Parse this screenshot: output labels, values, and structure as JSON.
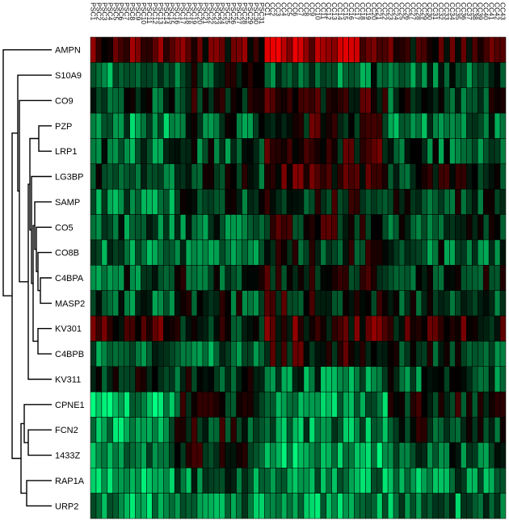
{
  "chart_data": {
    "type": "heatmap",
    "title": "",
    "xlabel": "",
    "ylabel": "",
    "color_scale": {
      "low": "#00ff80",
      "mid": "#000000",
      "high": "#ff0000"
    },
    "row_labels": [
      "AMPN",
      "S10A9",
      "CO9",
      "PZP",
      "LRP1",
      "LG3BP",
      "SAMP",
      "CO5",
      "CO8B",
      "C4BPA",
      "MASP2",
      "KV301",
      "C4BPB",
      "KV311",
      "CPNE1",
      "FCN2",
      "1433Z",
      "RAP1A",
      "URP2"
    ],
    "col_labels": [
      "PSC1",
      "PSC2",
      "PSC3",
      "PSC4",
      "PSC5",
      "PSC6",
      "PSC7",
      "PSC8",
      "PSC9",
      "PSC10",
      "PSC11",
      "PSC12",
      "PSC13",
      "PSC14",
      "PSC15",
      "PSC16",
      "PSC17",
      "PSC18",
      "PSC19",
      "PSC20",
      "PSC21",
      "PSC22",
      "PSC23",
      "PSC24",
      "PSC25",
      "PSC26",
      "PSC27",
      "PSC28",
      "PSC29",
      "PSC30",
      "PSC31",
      "CC1",
      "CC2",
      "CC3",
      "CC4",
      "CC5",
      "CC6",
      "CC7",
      "CC8",
      "CC9",
      "CC10",
      "CC11",
      "CC12",
      "CC13",
      "CC14",
      "CC15",
      "CC16",
      "CC17",
      "CC18",
      "CC19",
      "CC20",
      "CC21",
      "CC22",
      "CC23",
      "CC24",
      "CC25",
      "CC26",
      "CC27",
      "CC28",
      "CC29",
      "CC30",
      "CC31",
      "CC32",
      "CC33",
      "CC34",
      "CC35",
      "CC36",
      "CC37",
      "CC38",
      "CC39",
      "CC40",
      "CC41",
      "CC42",
      "CC43"
    ],
    "row_pattern": [
      [
        0.3,
        0.25,
        0.6,
        0.2
      ],
      [
        -0.5,
        -0.2,
        -0.4,
        -0.3
      ],
      [
        -0.2,
        -0.1,
        0.1,
        -0.2
      ],
      [
        -0.5,
        -0.3,
        0.1,
        -0.4
      ],
      [
        -0.4,
        -0.3,
        0.1,
        -0.3
      ],
      [
        -0.3,
        -0.2,
        0.2,
        -0.1
      ],
      [
        -0.4,
        -0.3,
        -0.1,
        -0.2
      ],
      [
        -0.4,
        -0.3,
        0.0,
        -0.2
      ],
      [
        -0.4,
        -0.3,
        -0.1,
        -0.3
      ],
      [
        -0.3,
        -0.2,
        0.0,
        -0.2
      ],
      [
        -0.3,
        -0.2,
        0.0,
        -0.2
      ],
      [
        0.2,
        -0.1,
        0.2,
        0.1
      ],
      [
        -0.4,
        -0.5,
        0.1,
        -0.2
      ],
      [
        -0.2,
        -0.2,
        -0.4,
        -0.3
      ],
      [
        -0.7,
        -0.1,
        -0.6,
        -0.1
      ],
      [
        -0.6,
        -0.1,
        -0.5,
        -0.1
      ],
      [
        -0.6,
        -0.1,
        -0.7,
        -0.3
      ],
      [
        -0.6,
        -0.4,
        -0.6,
        -0.5
      ],
      [
        -0.6,
        -0.5,
        -0.6,
        -0.5
      ]
    ],
    "pattern_segments": [
      "PSC1-PSC15",
      "PSC16-PSC31",
      "CC1-CC22",
      "CC23-CC43"
    ],
    "dendrogram_leaf_order": [
      "AMPN",
      "S10A9",
      "CO9",
      "PZP",
      "LRP1",
      "LG3BP",
      "SAMP",
      "CO5",
      "CO8B",
      "C4BPA",
      "MASP2",
      "KV301",
      "C4BPB",
      "KV311",
      "CPNE1",
      "FCN2",
      "1433Z",
      "RAP1A",
      "URP2"
    ]
  }
}
